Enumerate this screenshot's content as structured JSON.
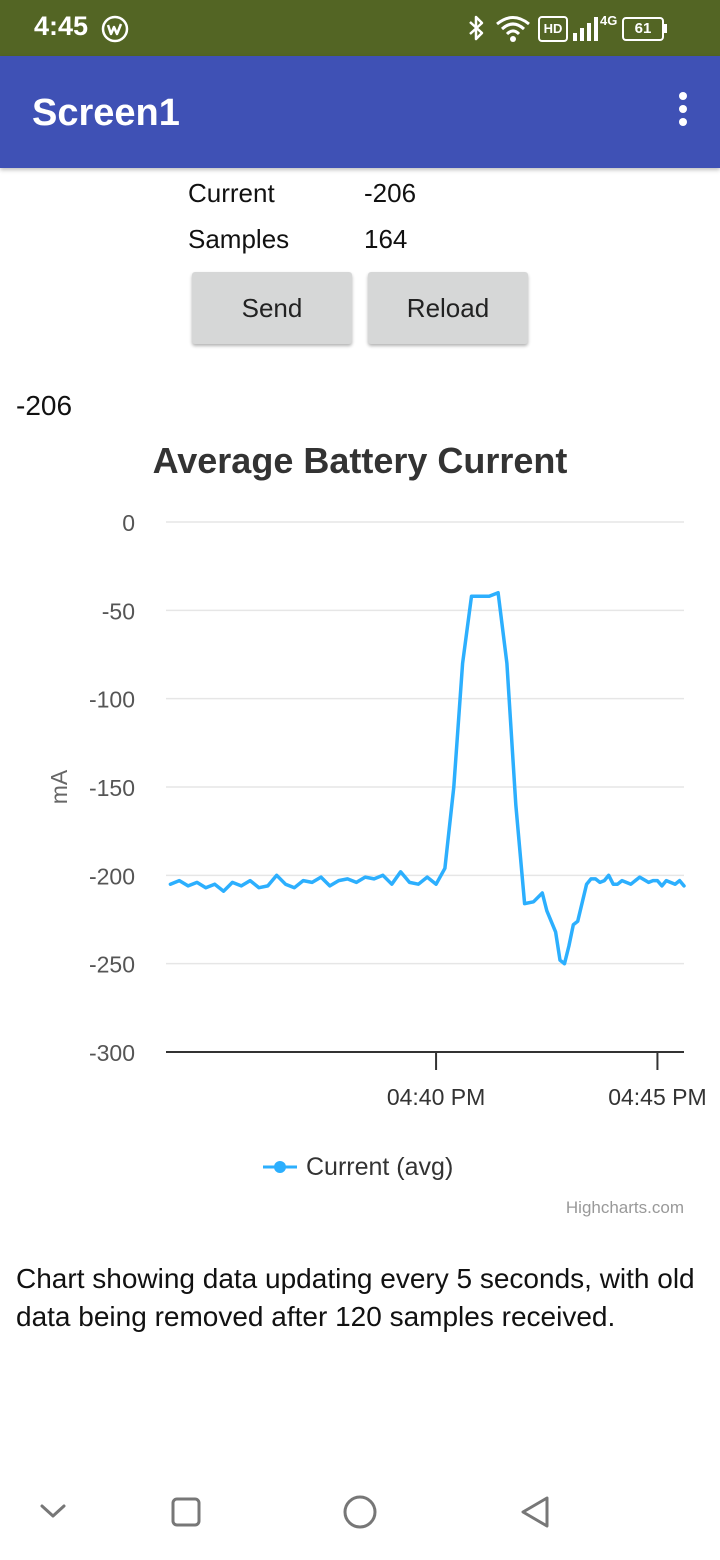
{
  "status_bar": {
    "time": "4:45",
    "notification_icon": "vpn-badge-icon",
    "icons": [
      "bluetooth-icon",
      "wifi-icon",
      "hd-icon",
      "signal-icon",
      "network-type-icon",
      "battery-icon"
    ],
    "hd_label": "HD",
    "network_label": "4G",
    "battery_level": "61"
  },
  "app_bar": {
    "title": "Screen1",
    "menu_icon": "more-vert-icon"
  },
  "info": {
    "current_label": "Current",
    "current_value": "-206",
    "samples_label": "Samples",
    "samples_value": "164"
  },
  "buttons": {
    "send": "Send",
    "reload": "Reload"
  },
  "reading": "-206",
  "chart_data": {
    "type": "line",
    "title": "Average Battery Current",
    "ylabel": "mA",
    "xlabel": "",
    "ylim": [
      -300,
      0
    ],
    "y_ticks": [
      "0",
      "-50",
      "-100",
      "-150",
      "-200",
      "-250",
      "-300"
    ],
    "x_ticks": [
      "04:40 PM",
      "04:45 PM"
    ],
    "x_range_minutes": [
      -11.1,
      0.6
    ],
    "x_tick_minutes": [
      -5,
      0
    ],
    "grid": true,
    "legend_position": "bottom-center",
    "line_color": "#2caffe",
    "series": [
      {
        "name": "Current (avg)",
        "x": [
          -11.0,
          -10.8,
          -10.6,
          -10.4,
          -10.2,
          -10.0,
          -9.8,
          -9.6,
          -9.4,
          -9.2,
          -9.0,
          -8.8,
          -8.6,
          -8.4,
          -8.2,
          -8.0,
          -7.8,
          -7.6,
          -7.4,
          -7.2,
          -7.0,
          -6.8,
          -6.6,
          -6.4,
          -6.2,
          -6.0,
          -5.8,
          -5.6,
          -5.4,
          -5.2,
          -5.0,
          -4.8,
          -4.6,
          -4.4,
          -4.2,
          -4.0,
          -3.8,
          -3.6,
          -3.4,
          -3.2,
          -3.0,
          -2.8,
          -2.6,
          -2.5,
          -2.4,
          -2.3,
          -2.2,
          -2.1,
          -2.0,
          -1.9,
          -1.8,
          -1.6,
          -1.5,
          -1.4,
          -1.3,
          -1.2,
          -1.1,
          -1.0,
          -0.9,
          -0.8,
          -0.6,
          -0.5,
          -0.4,
          -0.2,
          -0.1,
          0.0,
          0.1,
          0.2,
          0.4,
          0.5,
          0.6
        ],
        "values": [
          -205,
          -203,
          -206,
          -204,
          -207,
          -205,
          -209,
          -204,
          -206,
          -203,
          -207,
          -206,
          -200,
          -205,
          -207,
          -203,
          -204,
          -201,
          -206,
          -203,
          -202,
          -204,
          -201,
          -202,
          -200,
          -205,
          -198,
          -204,
          -205,
          -201,
          -205,
          -196,
          -150,
          -80,
          -42,
          -42,
          -42,
          -40,
          -80,
          -160,
          -216,
          -215,
          -210,
          -220,
          -226,
          -232,
          -248,
          -250,
          -240,
          -228,
          -226,
          -205,
          -202,
          -202,
          -204,
          -203,
          -200,
          -205,
          -205,
          -203,
          -205,
          -203,
          -201,
          -204,
          -203,
          -203,
          -206,
          -203,
          -205,
          -203,
          -206
        ]
      }
    ]
  },
  "credits": "Highcharts.com",
  "description": "Chart showing data updating every 5 seconds, with old data being removed after 120 samples received.",
  "nav_bar": {
    "icons": [
      "nav-collapse-icon",
      "recents-icon",
      "home-icon",
      "back-icon"
    ]
  }
}
